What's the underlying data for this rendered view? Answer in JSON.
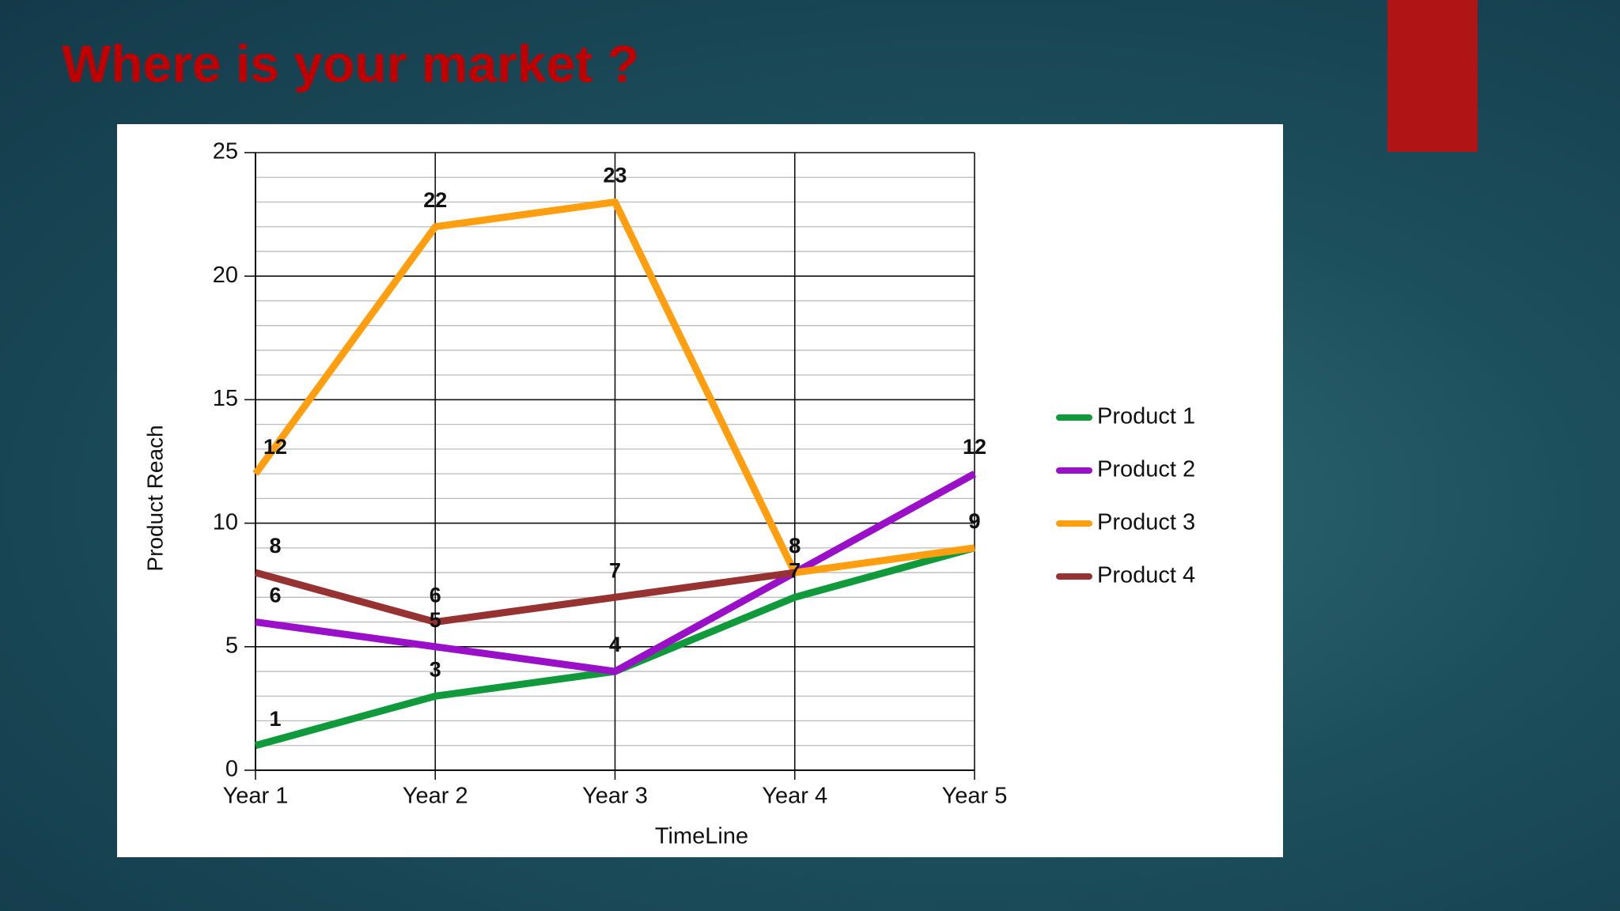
{
  "chart_data": {
    "type": "line",
    "title": "Where is your market ?",
    "xlabel": "TimeLine",
    "ylabel": "Product Reach",
    "categories": [
      "Year 1",
      "Year 2",
      "Year 3",
      "Year 4",
      "Year 5"
    ],
    "series": [
      {
        "name": "Product 1",
        "color": "#109a3c",
        "values": [
          1,
          3,
          4,
          7,
          9
        ]
      },
      {
        "name": "Product 2",
        "color": "#9a10c8",
        "values": [
          6,
          5,
          4,
          8,
          12
        ]
      },
      {
        "name": "Product 3",
        "color": "#ff9f10",
        "values": [
          12,
          22,
          23,
          8,
          9
        ]
      },
      {
        "name": "Product 4",
        "color": "#963232",
        "values": [
          8,
          6,
          7,
          8,
          null
        ]
      }
    ],
    "ylim": [
      0,
      25
    ],
    "yticks": [
      0,
      5,
      10,
      15,
      20,
      25
    ],
    "grid": true,
    "legend": "right"
  }
}
